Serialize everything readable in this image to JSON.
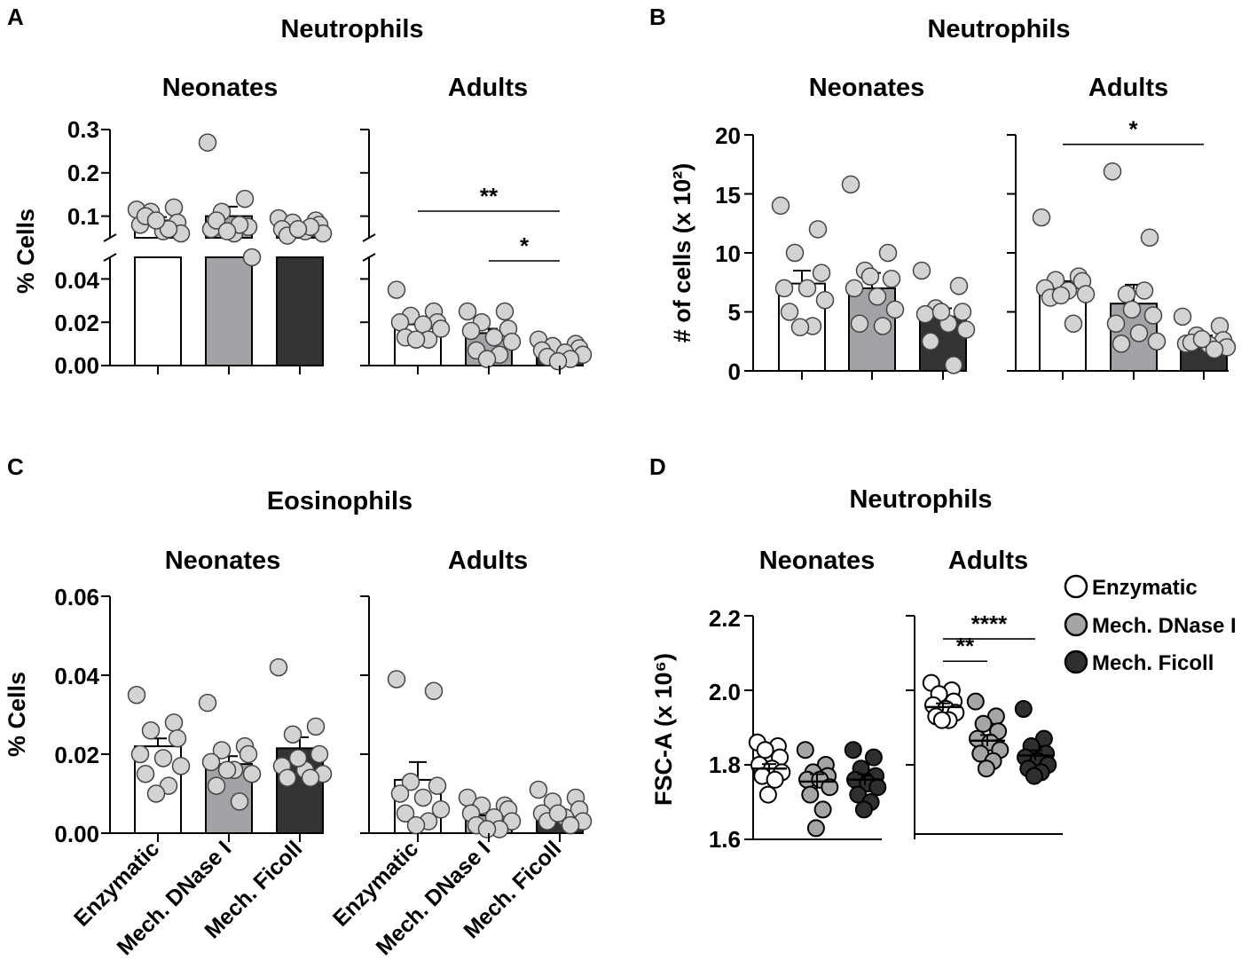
{
  "colors": {
    "enzymatic": "#ffffff",
    "dnase": "#a3a3a7",
    "ficoll": "#333333",
    "dot": "#d3d3d3",
    "dot_dnase": "#a5a5a5",
    "dot_ficoll": "#2f2f2f",
    "axis": "#000000"
  },
  "legend": {
    "items": [
      {
        "label": "Enzymatic",
        "color": "#ffffff"
      },
      {
        "label": "Mech. DNase I",
        "color": "#a5a5a5"
      },
      {
        "label": "Mech. Ficoll",
        "color": "#2f2f2f"
      }
    ]
  },
  "x_categories": [
    "Enzymatic",
    "Mech. DNase I",
    "Mech. Ficoll"
  ],
  "chart_data": [
    {
      "panel": "A",
      "type": "bar",
      "title": "Neutrophils",
      "ylabel": "% Cells",
      "broken_axis": true,
      "ylim_lower": [
        0,
        0.05
      ],
      "ylim_upper": [
        0.05,
        0.3
      ],
      "yticks_lower": [
        "0.00",
        "0.02",
        "0.04"
      ],
      "yticks_upper": [
        "0.1",
        "0.2",
        "0.3"
      ],
      "categories": [
        "Enzymatic",
        "Mech. DNase I",
        "Mech. Ficoll"
      ],
      "groups": [
        {
          "name": "Neonates",
          "bars": [
            {
              "category": "Enzymatic",
              "mean": 0.09,
              "sem": 0.008,
              "points": [
                0.115,
                0.12,
                0.11,
                0.085,
                0.08,
                0.065,
                0.06,
                0.1,
                0.07,
                0.09
              ]
            },
            {
              "category": "Mech. DNase I",
              "mean": 0.1,
              "sem": 0.022,
              "points": [
                0.27,
                0.14,
                0.11,
                0.075,
                0.07,
                0.06,
                0.05,
                0.09,
                0.08,
                0.065
              ]
            },
            {
              "category": "Mech. Ficoll",
              "mean": 0.07,
              "sem": 0.004,
              "points": [
                0.095,
                0.09,
                0.085,
                0.08,
                0.07,
                0.065,
                0.06,
                0.055,
                0.075,
                0.07
              ]
            }
          ]
        },
        {
          "name": "Adults",
          "bars": [
            {
              "category": "Enzymatic",
              "mean": 0.019,
              "sem": 0.002,
              "points": [
                0.035,
                0.025,
                0.023,
                0.02,
                0.02,
                0.019,
                0.017,
                0.013,
                0.012,
                0.012
              ]
            },
            {
              "category": "Mech. DNase I",
              "mean": 0.015,
              "sem": 0.002,
              "points": [
                0.025,
                0.025,
                0.02,
                0.017,
                0.016,
                0.013,
                0.011,
                0.007,
                0.005,
                0.003
              ]
            },
            {
              "category": "Mech. Ficoll",
              "mean": 0.006,
              "sem": 0.001,
              "points": [
                0.012,
                0.01,
                0.009,
                0.008,
                0.007,
                0.006,
                0.005,
                0.004,
                0.003,
                0.002
              ]
            }
          ]
        }
      ],
      "significance": [
        {
          "group": "Adults",
          "from": "Enzymatic",
          "to": "Mech. Ficoll",
          "label": "**",
          "y": 0.073
        },
        {
          "group": "Adults",
          "from": "Mech. DNase I",
          "to": "Mech. Ficoll",
          "label": "*",
          "y": 0.05
        }
      ]
    },
    {
      "panel": "B",
      "type": "bar",
      "title": "Neutrophils",
      "ylabel": "# of cells (x 10²)",
      "ylim": [
        0,
        20
      ],
      "yticks": [
        "0",
        "5",
        "10",
        "15",
        "20"
      ],
      "categories": [
        "Enzymatic",
        "Mech. DNase I",
        "Mech. Ficoll"
      ],
      "groups": [
        {
          "name": "Neonates",
          "bars": [
            {
              "category": "Enzymatic",
              "mean": 7.4,
              "sem": 1.1,
              "points": [
                14,
                12,
                10,
                8.3,
                7,
                7,
                6,
                5,
                3.8,
                3.7
              ]
            },
            {
              "category": "Mech. DNase I",
              "mean": 7.0,
              "sem": 1.3,
              "points": [
                15.8,
                10,
                8.5,
                7.8,
                7,
                6.3,
                5.2,
                4,
                3.8,
                8
              ]
            },
            {
              "category": "Mech. Ficoll",
              "mean": 4.6,
              "sem": 0.7,
              "points": [
                8.5,
                7.2,
                5.3,
                5,
                4.8,
                4,
                3.5,
                2.5,
                0.5,
                5
              ]
            }
          ]
        },
        {
          "name": "Adults",
          "bars": [
            {
              "category": "Enzymatic",
              "mean": 7.0,
              "sem": 0.6,
              "points": [
                13,
                8,
                7.7,
                7.6,
                7,
                6.8,
                6.5,
                6.2,
                4,
                6.4
              ]
            },
            {
              "category": "Mech. DNase I",
              "mean": 5.7,
              "sem": 1.6,
              "points": [
                16.9,
                11.3,
                6.5,
                4.7,
                4,
                3.2,
                2.5,
                2.3,
                6.8,
                5.2
              ]
            },
            {
              "category": "Mech. Ficoll",
              "mean": 2.6,
              "sem": 0.4,
              "points": [
                4.6,
                3.8,
                3,
                2.6,
                2.3,
                2.2,
                2,
                2.4,
                1.8,
                2.7
              ]
            }
          ]
        }
      ],
      "significance": [
        {
          "group": "Adults",
          "from": "Enzymatic",
          "to": "Mech. Ficoll",
          "label": "*",
          "y": 19.2
        }
      ]
    },
    {
      "panel": "C",
      "type": "bar",
      "title": "Eosinophils",
      "ylabel": "% Cells",
      "ylim": [
        0,
        0.06
      ],
      "yticks": [
        "0.00",
        "0.02",
        "0.04",
        "0.06"
      ],
      "categories": [
        "Enzymatic",
        "Mech. DNase I",
        "Mech. Ficoll"
      ],
      "groups": [
        {
          "name": "Neonates",
          "bars": [
            {
              "category": "Enzymatic",
              "mean": 0.022,
              "sem": 0.002,
              "points": [
                0.035,
                0.028,
                0.026,
                0.024,
                0.02,
                0.019,
                0.017,
                0.015,
                0.012,
                0.01
              ]
            },
            {
              "category": "Mech. DNase I",
              "mean": 0.0175,
              "sem": 0.002,
              "points": [
                0.033,
                0.022,
                0.021,
                0.02,
                0.018,
                0.016,
                0.015,
                0.012,
                0.008,
                0.016
              ]
            },
            {
              "category": "Mech. Ficoll",
              "mean": 0.0215,
              "sem": 0.0028,
              "points": [
                0.042,
                0.027,
                0.025,
                0.02,
                0.017,
                0.016,
                0.015,
                0.014,
                0.014,
                0.019
              ]
            }
          ]
        },
        {
          "name": "Adults",
          "bars": [
            {
              "category": "Enzymatic",
              "mean": 0.0135,
              "sem": 0.0045,
              "points": [
                0.039,
                0.036,
                0.013,
                0.012,
                0.01,
                0.009,
                0.006,
                0.005,
                0.003,
                0.002
              ]
            },
            {
              "category": "Mech. DNase I",
              "mean": 0.0045,
              "sem": 0.0009,
              "points": [
                0.009,
                0.007,
                0.007,
                0.006,
                0.005,
                0.004,
                0.003,
                0.002,
                0.001,
                0.001
              ]
            },
            {
              "category": "Mech. Ficoll",
              "mean": 0.005,
              "sem": 0.0009,
              "points": [
                0.011,
                0.009,
                0.008,
                0.006,
                0.005,
                0.004,
                0.003,
                0.003,
                0.002,
                0.005
              ]
            }
          ]
        }
      ],
      "significance": []
    },
    {
      "panel": "D",
      "type": "scatter",
      "title": "Neutrophils",
      "ylabel": "FSC-A (x 10⁶)",
      "ylim": [
        1.6,
        2.2
      ],
      "yticks": [
        "1.6",
        "1.8",
        "2.0",
        "2.2"
      ],
      "categories": [
        "Enzymatic",
        "Mech. DNase I",
        "Mech. Ficoll"
      ],
      "groups": [
        {
          "name": "Neonates",
          "series": [
            {
              "category": "Enzymatic",
              "mean": 1.79,
              "sem": 0.012,
              "points": [
                1.86,
                1.85,
                1.84,
                1.82,
                1.8,
                1.79,
                1.78,
                1.77,
                1.76,
                1.72
              ]
            },
            {
              "category": "Mech. DNase I",
              "mean": 1.755,
              "sem": 0.02,
              "points": [
                1.84,
                1.8,
                1.78,
                1.77,
                1.76,
                1.76,
                1.74,
                1.72,
                1.68,
                1.63
              ]
            },
            {
              "category": "Mech. Ficoll",
              "mean": 1.76,
              "sem": 0.015,
              "points": [
                1.84,
                1.82,
                1.79,
                1.77,
                1.76,
                1.75,
                1.74,
                1.72,
                1.7,
                1.68
              ]
            }
          ]
        },
        {
          "name": "Adults",
          "series": [
            {
              "category": "Enzymatic",
              "mean": 1.955,
              "sem": 0.01,
              "points": [
                2.02,
                2.0,
                1.99,
                1.97,
                1.96,
                1.95,
                1.94,
                1.93,
                1.92,
                1.92
              ]
            },
            {
              "category": "Mech. DNase I",
              "mean": 1.865,
              "sem": 0.015,
              "points": [
                1.97,
                1.93,
                1.91,
                1.89,
                1.87,
                1.86,
                1.84,
                1.83,
                1.81,
                1.79
              ]
            },
            {
              "category": "Mech. Ficoll",
              "mean": 1.825,
              "sem": 0.014,
              "points": [
                1.95,
                1.87,
                1.85,
                1.83,
                1.82,
                1.81,
                1.8,
                1.79,
                1.78,
                1.77
              ]
            }
          ]
        }
      ],
      "significance": [
        {
          "group": "Adults",
          "from": "Enzymatic",
          "to": "Mech. Ficoll",
          "label": "****",
          "y": 2.138
        },
        {
          "group": "Adults",
          "from": "Enzymatic",
          "to": "Mech. DNase I",
          "label": "**",
          "y": 2.078
        }
      ]
    }
  ]
}
